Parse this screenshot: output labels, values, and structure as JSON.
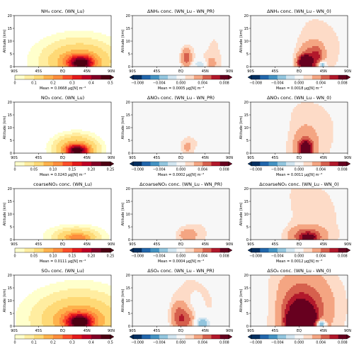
{
  "chart_data": {
    "type": "heatmap",
    "layout": "4x3 grid of latitude-altitude contour maps, each with a horizontal colorbar and a mean annotation",
    "x_axis": {
      "ticks": [
        "90S",
        "45S",
        "EQ",
        "45N",
        "90N"
      ],
      "range": [
        -90,
        90
      ]
    },
    "y_axis": {
      "label": "Altitude (km)",
      "ticks": [
        "0",
        "5",
        "10",
        "15",
        "20"
      ],
      "range": [
        0,
        20
      ]
    },
    "colormaps": {
      "sequential": [
        "#ffffff",
        "#ffffcc",
        "#ffeda0",
        "#fed976",
        "#feb24c",
        "#fd8d3c",
        "#fc4e2a",
        "#e31a1c",
        "#bd0026",
        "#800026",
        "#4d0013"
      ],
      "diverging": [
        "#053061",
        "#2166ac",
        "#4393c3",
        "#92c5de",
        "#d1e5f0",
        "#f7f7f7",
        "#fddbc7",
        "#f4a582",
        "#d6604d",
        "#b2182b",
        "#67001f"
      ]
    },
    "panels": [
      {
        "title": "NH₄ conc. (WN_Lu)",
        "kind": "seq",
        "cbar_ticks": [
          "0",
          "0.1",
          "0.2",
          "0.3",
          "0.4",
          "0.5"
        ],
        "mean": "Mean = 0.0668 μg[N] m⁻³",
        "blobs": [
          {
            "lat": 30,
            "alt": 2.3,
            "slat": 45,
            "salt": 5.5,
            "amp": 0.1
          },
          {
            "lat": 32,
            "alt": 1.8,
            "slat": 22,
            "salt": 2.5,
            "amp": 0.2
          },
          {
            "lat": 35,
            "alt": 1.2,
            "slat": 13,
            "salt": 1.6,
            "amp": 0.22
          }
        ]
      },
      {
        "title": "ΔNH₄ conc. (WN_Lu - WN_PR)",
        "kind": "div",
        "cbar_ticks": [
          "−0.008",
          "−0.004",
          "0.000",
          "0.004",
          "0.008"
        ],
        "mean": "Mean = 0.0005 μg[N] m⁻³",
        "blobs": [
          {
            "lat": 40,
            "alt": 8,
            "slat": 80,
            "salt": 16,
            "amp": 0.0011
          },
          {
            "lat": -25,
            "alt": 7,
            "slat": 35,
            "salt": 10,
            "amp": -0.0011
          },
          {
            "lat": 10,
            "alt": 3.5,
            "slat": 7,
            "salt": 2.5,
            "amp": 0.005
          },
          {
            "lat": 38,
            "alt": 0.8,
            "slat": 10,
            "salt": 1.2,
            "amp": -0.003
          },
          {
            "lat": 55,
            "alt": 1,
            "slat": 8,
            "salt": 2,
            "amp": 0.0025
          }
        ]
      },
      {
        "title": "ΔNH₄ conc. (WN_Lu - WN_0)",
        "kind": "div",
        "cbar_ticks": [
          "−0.008",
          "−0.004",
          "0.000",
          "0.004",
          "0.008"
        ],
        "mean": "Mean = 0.0018 μg[N] m⁻³",
        "blobs": [
          {
            "lat": 20,
            "alt": 8,
            "slat": 90,
            "salt": 18,
            "amp": 0.0012
          },
          {
            "lat": -40,
            "alt": 8,
            "slat": 25,
            "salt": 8,
            "amp": -0.0012
          },
          {
            "lat": 22,
            "alt": 3,
            "slat": 15,
            "salt": 4,
            "amp": 0.005
          },
          {
            "lat": 10,
            "alt": 1.5,
            "slat": 8,
            "salt": 1.8,
            "amp": 0.012
          },
          {
            "lat": 35,
            "alt": 4,
            "slat": 7,
            "salt": 3,
            "amp": 0.0025
          },
          {
            "lat": 42,
            "alt": 0.8,
            "slat": 5,
            "salt": 1.2,
            "amp": -0.006
          }
        ]
      },
      {
        "title": "NO₃ conc. (WN_Lu)",
        "kind": "seq",
        "cbar_ticks": [
          "0",
          "0.05",
          "0.10",
          "0.15",
          "0.20",
          "0.25"
        ],
        "mean": "Mean = 0.0243 μg[N] m⁻³",
        "blobs": [
          {
            "lat": 25,
            "alt": 1.6,
            "slat": 24,
            "salt": 3.2,
            "amp": 0.08
          },
          {
            "lat": 27,
            "alt": 1.0,
            "slat": 14,
            "salt": 1.5,
            "amp": 0.16
          }
        ]
      },
      {
        "title": "ΔNO₃ conc. (WN_Lu - WN_PR)",
        "kind": "div",
        "cbar_ticks": [
          "−0.008",
          "−0.004",
          "0.000",
          "0.004",
          "0.008"
        ],
        "mean": "Mean = 0.0002 μg[N] m⁻³",
        "blobs": [
          {
            "lat": 40,
            "alt": 8,
            "slat": 60,
            "salt": 16,
            "amp": 0.001
          },
          {
            "lat": -30,
            "alt": 8,
            "slat": 40,
            "salt": 12,
            "amp": -0.0009
          },
          {
            "lat": 12,
            "alt": 2.5,
            "slat": 10,
            "salt": 2.5,
            "amp": 0.002
          },
          {
            "lat": 40,
            "alt": 0.8,
            "slat": 8,
            "salt": 1.2,
            "amp": -0.0018
          }
        ]
      },
      {
        "title": "ΔNO₃ conc. (WN_Lu - WN_0)",
        "kind": "div",
        "cbar_ticks": [
          "−0.008",
          "−0.004",
          "0.000",
          "0.004",
          "0.008"
        ],
        "mean": "Mean = 0.0011 μg[N] m⁻³",
        "blobs": [
          {
            "lat": 15,
            "alt": 9,
            "slat": 80,
            "salt": 18,
            "amp": 0.0012
          },
          {
            "lat": -50,
            "alt": 8,
            "slat": 20,
            "salt": 6,
            "amp": -0.001
          },
          {
            "lat": 12,
            "alt": 3,
            "slat": 16,
            "salt": 5,
            "amp": 0.003
          },
          {
            "lat": 12,
            "alt": 1.5,
            "slat": 8,
            "salt": 2.2,
            "amp": 0.01
          }
        ]
      },
      {
        "title": "coarseNO₃ conc. (WN_Lu)",
        "kind": "seq",
        "cbar_ticks": [
          "0",
          "0.05",
          "0.10",
          "0.15",
          "0.20",
          "0.25"
        ],
        "mean": "Mean = 0.0111 μg[N] m⁻³",
        "blobs": [
          {
            "lat": 25,
            "alt": 1.2,
            "slat": 30,
            "salt": 2.5,
            "amp": 0.04
          },
          {
            "lat": 28,
            "alt": 0.7,
            "slat": 16,
            "salt": 1.2,
            "amp": 0.06
          }
        ]
      },
      {
        "title": "ΔcoarseNO₃ conc. (WN_Lu - WN_PR)",
        "kind": "div",
        "cbar_ticks": [
          "−0.008",
          "−0.004",
          "0.000",
          "0.004",
          "0.008"
        ],
        "mean": "Mean = 0.0004 μg[N] m⁻³",
        "blobs": [
          {
            "lat": 30,
            "alt": 8,
            "slat": 70,
            "salt": 16,
            "amp": 0.001
          },
          {
            "lat": -35,
            "alt": 8,
            "slat": 30,
            "salt": 10,
            "amp": -0.0009
          },
          {
            "lat": 12,
            "alt": 1.8,
            "slat": 14,
            "salt": 2,
            "amp": 0.0025
          }
        ]
      },
      {
        "title": "ΔcoarseNO₃ conc. (WN_Lu - WN_0)",
        "kind": "div",
        "cbar_ticks": [
          "−0.008",
          "−0.004",
          "0.000",
          "0.004",
          "0.008"
        ],
        "mean": "Mean = 0.0012 μg[N] m⁻³",
        "blobs": [
          {
            "lat": 10,
            "alt": 9,
            "slat": 80,
            "salt": 18,
            "amp": 0.0013
          },
          {
            "lat": -50,
            "alt": 8,
            "slat": 22,
            "salt": 6,
            "amp": -0.0011
          },
          {
            "lat": 15,
            "alt": 1.4,
            "slat": 22,
            "salt": 2.5,
            "amp": 0.005
          },
          {
            "lat": 18,
            "alt": 0.8,
            "slat": 10,
            "salt": 1.2,
            "amp": 0.005
          }
        ]
      },
      {
        "title": "SO₄ conc. (WN_Lu)",
        "kind": "seq",
        "cbar_ticks": [
          "0",
          "0.1",
          "0.2",
          "0.3",
          "0.4",
          "0.5"
        ],
        "mean": "Mean = 0.0840 μg[S] m⁻³",
        "blobs": [
          {
            "lat": 30,
            "alt": 3,
            "slat": 55,
            "salt": 7,
            "amp": 0.1
          },
          {
            "lat": 30,
            "alt": 2,
            "slat": 25,
            "salt": 3,
            "amp": 0.2
          },
          {
            "lat": 32,
            "alt": 1.3,
            "slat": 13,
            "salt": 1.8,
            "amp": 0.25
          }
        ]
      },
      {
        "title": "ΔSO₄ conc. (WN_Lu - WN_PR)",
        "kind": "div",
        "cbar_ticks": [
          "−0.008",
          "−0.004",
          "0.000",
          "0.004",
          "0.008"
        ],
        "mean": "Mean = 0.0014 μg[S] m⁻³",
        "blobs": [
          {
            "lat": 10,
            "alt": 8,
            "slat": 80,
            "salt": 18,
            "amp": 0.0012
          },
          {
            "lat": -50,
            "alt": 6,
            "slat": 25,
            "salt": 10,
            "amp": -0.0014
          },
          {
            "lat": -5,
            "alt": 4,
            "slat": 10,
            "salt": 4,
            "amp": 0.0035
          },
          {
            "lat": 12,
            "alt": 2.5,
            "slat": 12,
            "salt": 3,
            "amp": 0.004
          },
          {
            "lat": 25,
            "alt": 5,
            "slat": 10,
            "salt": 4,
            "amp": -0.0012
          },
          {
            "lat": 40,
            "alt": 1,
            "slat": 12,
            "salt": 2,
            "amp": -0.004
          }
        ]
      },
      {
        "title": "ΔSO₄ conc. (WN_Lu - WN_0)",
        "kind": "div",
        "cbar_ticks": [
          "−0.008",
          "−0.004",
          "0.000",
          "0.004",
          "0.008"
        ],
        "mean": "Mean = 0.0046 μg[S] m⁻³",
        "blobs": [
          {
            "lat": 10,
            "alt": 9,
            "slat": 80,
            "salt": 16,
            "amp": 0.0012
          },
          {
            "lat": -50,
            "alt": 8,
            "slat": 20,
            "salt": 6,
            "amp": -0.001
          },
          {
            "lat": 5,
            "alt": 7,
            "slat": 35,
            "salt": 9,
            "amp": 0.005
          },
          {
            "lat": 2,
            "alt": 4,
            "slat": 18,
            "salt": 4.5,
            "amp": 0.007
          },
          {
            "lat": -10,
            "alt": 1.5,
            "slat": 10,
            "salt": 2,
            "amp": 0.007
          },
          {
            "lat": 20,
            "alt": 2.5,
            "slat": 10,
            "salt": 2.5,
            "amp": 0.005
          },
          {
            "lat": 40,
            "alt": 0.8,
            "slat": 6,
            "salt": 1.2,
            "amp": -0.008
          }
        ]
      }
    ]
  }
}
